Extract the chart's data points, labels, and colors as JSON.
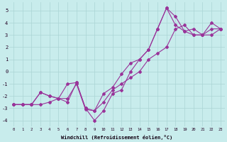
{
  "title": "",
  "xlabel": "Windchill (Refroidissement éolien,°C)",
  "ylabel": "",
  "background_color": "#c8ecec",
  "grid_color": "#aad4d4",
  "line_color": "#993399",
  "xlim": [
    -0.5,
    23.5
  ],
  "ylim": [
    -4.5,
    5.7
  ],
  "xticks": [
    0,
    1,
    2,
    3,
    4,
    5,
    6,
    7,
    8,
    9,
    10,
    11,
    12,
    13,
    14,
    15,
    16,
    17,
    18,
    19,
    20,
    21,
    22,
    23
  ],
  "yticks": [
    -4,
    -3,
    -2,
    -1,
    0,
    1,
    2,
    3,
    4,
    5
  ],
  "series": [
    [
      -2.7,
      -2.7,
      -2.7,
      -2.7,
      -2.5,
      -2.2,
      -2.2,
      -1.0,
      -3.1,
      -3.2,
      -2.5,
      -1.5,
      -1.0,
      -0.5,
      0.0,
      1.0,
      1.5,
      2.0,
      3.5,
      3.8,
      3.0,
      3.0,
      3.5,
      3.5
    ],
    [
      -2.7,
      -2.7,
      -2.7,
      -1.7,
      -2.0,
      -2.2,
      -2.5,
      -0.9,
      -3.0,
      -3.2,
      -1.8,
      -1.3,
      -0.2,
      0.7,
      1.0,
      1.8,
      3.5,
      5.2,
      4.5,
      3.3,
      3.0,
      3.0,
      4.0,
      3.5
    ],
    [
      -2.7,
      -2.7,
      -2.7,
      -1.7,
      -2.0,
      -2.2,
      -1.0,
      -0.9,
      -3.0,
      -4.0,
      -3.2,
      -1.8,
      -1.5,
      0.0,
      1.0,
      1.8,
      3.5,
      5.2,
      3.8,
      3.3,
      3.5,
      3.0,
      3.0,
      3.5
    ]
  ]
}
